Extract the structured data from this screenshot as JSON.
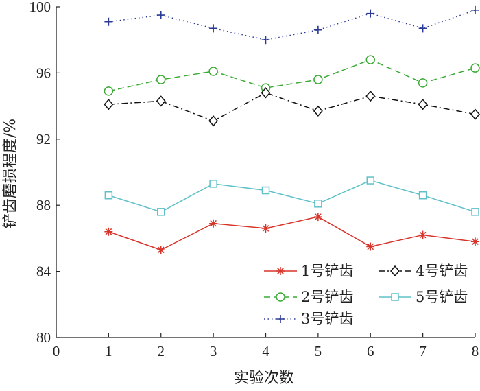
{
  "chart_data": {
    "type": "line",
    "title": "",
    "xlabel": "实验次数",
    "ylabel": "铲齿磨损程度/%",
    "xlim": [
      0,
      8
    ],
    "ylim": [
      80,
      100
    ],
    "x_ticks": [
      0,
      1,
      2,
      3,
      4,
      5,
      6,
      7,
      8
    ],
    "y_ticks": [
      80,
      84,
      88,
      92,
      96,
      100
    ],
    "x": [
      1,
      2,
      3,
      4,
      5,
      6,
      7,
      8
    ],
    "grid": false,
    "legend_position": "bottom-right",
    "series": [
      {
        "name": "1号铲齿",
        "values": [
          86.4,
          85.3,
          86.9,
          86.6,
          87.3,
          85.5,
          86.2,
          85.8
        ],
        "color": "#d7342a",
        "marker": "asterisk",
        "line": "solid"
      },
      {
        "name": "2号铲齿",
        "values": [
          94.9,
          95.6,
          96.1,
          95.1,
          95.6,
          96.8,
          95.4,
          96.3
        ],
        "color": "#3aaa35",
        "marker": "circle",
        "line": "dashed"
      },
      {
        "name": "3号铲齿",
        "values": [
          99.1,
          99.5,
          98.7,
          98.0,
          98.6,
          99.6,
          98.7,
          99.8
        ],
        "color": "#2b3a96",
        "marker": "plus",
        "line": "dotted"
      },
      {
        "name": "4号铲齿",
        "values": [
          94.1,
          94.3,
          93.1,
          94.8,
          93.7,
          94.6,
          94.1,
          93.5
        ],
        "color": "#111111",
        "marker": "diamond",
        "line": "dashdot"
      },
      {
        "name": "5号铲齿",
        "values": [
          88.6,
          87.6,
          89.3,
          88.9,
          88.1,
          89.5,
          88.6,
          87.6
        ],
        "color": "#5fc0c8",
        "marker": "square",
        "line": "solid"
      }
    ]
  }
}
